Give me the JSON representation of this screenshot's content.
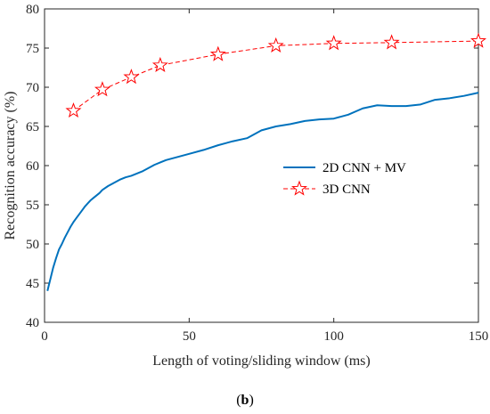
{
  "chart_data": {
    "type": "line",
    "xlabel": "Length of voting/sliding window (ms)",
    "ylabel": "Recognition accuracy (%)",
    "xlim": [
      0,
      150
    ],
    "ylim": [
      40,
      80
    ],
    "xticks": [
      "0",
      "50",
      "100",
      "150"
    ],
    "yticks": [
      "40",
      "45",
      "50",
      "55",
      "60",
      "65",
      "70",
      "75",
      "80"
    ],
    "grid": false,
    "legend_position": "middle-right",
    "series": [
      {
        "name": "2D CNN + MV",
        "color": "#0072BD",
        "style": "solid",
        "x": [
          1,
          2,
          3,
          4,
          5,
          6,
          7,
          8,
          9,
          10,
          11,
          12,
          13,
          14,
          15,
          16,
          17,
          18,
          19,
          20,
          22,
          24,
          26,
          28,
          30,
          32,
          34,
          36,
          38,
          40,
          42,
          44,
          46,
          48,
          50,
          55,
          60,
          65,
          70,
          75,
          80,
          85,
          90,
          95,
          100,
          105,
          110,
          115,
          120,
          125,
          130,
          135,
          140,
          145,
          150
        ],
        "y": [
          44.0,
          45.5,
          47.0,
          48.2,
          49.3,
          50.0,
          50.8,
          51.5,
          52.2,
          52.8,
          53.3,
          53.8,
          54.3,
          54.8,
          55.2,
          55.6,
          55.9,
          56.2,
          56.5,
          56.9,
          57.4,
          57.8,
          58.2,
          58.5,
          58.7,
          59.0,
          59.3,
          59.7,
          60.1,
          60.4,
          60.7,
          60.9,
          61.1,
          61.3,
          61.5,
          62.0,
          62.6,
          63.1,
          63.5,
          64.5,
          65.0,
          65.3,
          65.7,
          65.9,
          66.0,
          66.5,
          67.3,
          67.7,
          67.6,
          67.6,
          67.8,
          68.4,
          68.6,
          68.9,
          69.3
        ]
      },
      {
        "name": "3D CNN",
        "color": "#FF0000",
        "style": "dashed",
        "marker": "star",
        "x": [
          10,
          20,
          30,
          40,
          60,
          80,
          100,
          120,
          150
        ],
        "y": [
          67.0,
          69.7,
          71.3,
          72.8,
          74.2,
          75.3,
          75.6,
          75.7,
          75.9
        ]
      }
    ]
  },
  "caption": "b"
}
